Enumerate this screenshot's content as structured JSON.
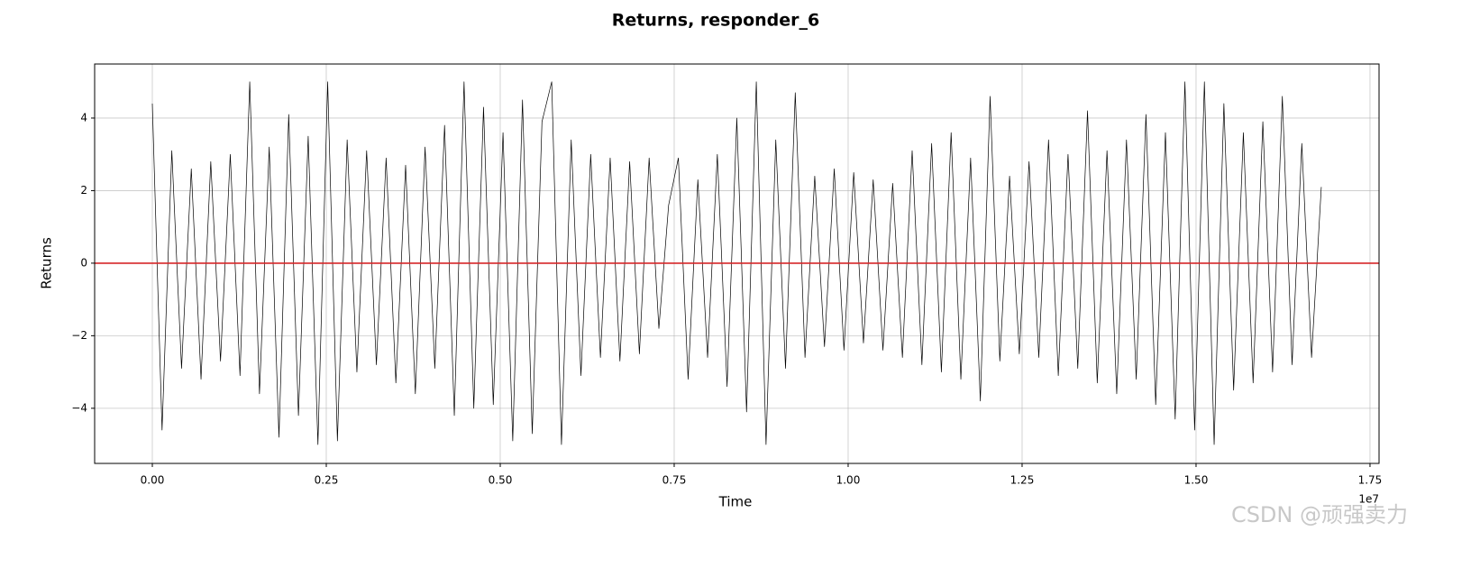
{
  "chart_data": {
    "type": "line",
    "title": "Returns, responder_6",
    "xlabel": "Time",
    "ylabel": "Returns",
    "x_offset_label": "1e7",
    "watermark": "CSDN @顽强卖力",
    "x": [
      0,
      140000,
      280000,
      420000,
      560000,
      700000,
      840000,
      980000,
      1120000,
      1260000,
      1400000,
      1540000,
      1680000,
      1820000,
      1960000,
      2100000,
      2240000,
      2380000,
      2520000,
      2660000,
      2800000,
      2940000,
      3080000,
      3220000,
      3360000,
      3500000,
      3640000,
      3780000,
      3920000,
      4060000,
      4200000,
      4340000,
      4480000,
      4620000,
      4760000,
      4900000,
      5040000,
      5180000,
      5320000,
      5460000,
      5600000,
      5740000,
      5880000,
      6020000,
      6160000,
      6300000,
      6440000,
      6580000,
      6720000,
      6860000,
      7000000,
      7140000,
      7280000,
      7420000,
      7560000,
      7700000,
      7840000,
      7980000,
      8120000,
      8260000,
      8400000,
      8540000,
      8680000,
      8820000,
      8960000,
      9100000,
      9240000,
      9380000,
      9520000,
      9660000,
      9800000,
      9940000,
      10080000,
      10220000,
      10360000,
      10500000,
      10640000,
      10780000,
      10920000,
      11060000,
      11200000,
      11340000,
      11480000,
      11620000,
      11760000,
      11900000,
      12040000,
      12180000,
      12320000,
      12460000,
      12600000,
      12740000,
      12880000,
      13020000,
      13160000,
      13300000,
      13440000,
      13580000,
      13720000,
      13860000,
      14000000,
      14140000,
      14280000,
      14420000,
      14560000,
      14700000,
      14840000,
      14980000,
      15120000,
      15260000,
      15400000,
      15540000,
      15680000,
      15820000,
      15960000,
      16100000,
      16240000,
      16380000,
      16520000,
      16660000,
      16800000
    ],
    "series": [
      {
        "color": "#000000",
        "values": [
          4.4,
          -4.6,
          3.1,
          -2.9,
          2.6,
          -3.2,
          2.8,
          -2.7,
          3.0,
          -3.1,
          5.0,
          -3.6,
          3.2,
          -4.8,
          4.1,
          -4.2,
          3.5,
          -5.0,
          5.0,
          -4.9,
          3.4,
          -3.0,
          3.1,
          -2.8,
          2.9,
          -3.3,
          2.7,
          -3.6,
          3.2,
          -2.9,
          3.8,
          -4.2,
          5.0,
          -4.0,
          4.3,
          -3.9,
          3.6,
          -4.9,
          4.5,
          -4.7,
          3.9,
          5.0,
          -5.0,
          3.4,
          -3.1,
          3.0,
          -2.6,
          2.9,
          -2.7,
          2.8,
          -2.5,
          2.9,
          -1.8,
          1.6,
          2.9,
          -3.2,
          2.3,
          -2.6,
          3.0,
          -3.4,
          4.0,
          -4.1,
          5.0,
          -5.0,
          3.4,
          -2.9,
          4.7,
          -2.6,
          2.4,
          -2.3,
          2.6,
          -2.4,
          2.5,
          -2.2,
          2.3,
          -2.4,
          2.2,
          -2.6,
          3.1,
          -2.8,
          3.3,
          -3.0,
          3.6,
          -3.2,
          2.9,
          -3.8,
          4.6,
          -2.7,
          2.4,
          -2.5,
          2.8,
          -2.6,
          3.4,
          -3.1,
          3.0,
          -2.9,
          4.2,
          -3.3,
          3.1,
          -3.6,
          3.4,
          -3.2,
          4.1,
          -3.9,
          3.6,
          -4.3,
          5.0,
          -4.6,
          5.0,
          -5.0,
          4.4,
          -3.5,
          3.6,
          -3.3,
          3.9,
          -3.0,
          4.6,
          -2.8,
          3.3,
          -2.6,
          2.1
        ]
      }
    ],
    "reference_line": {
      "value": 0,
      "color": "#d62728"
    },
    "xlim": [
      -829000,
      17630000
    ],
    "xticks": [
      {
        "value": 0,
        "label": "0.00"
      },
      {
        "value": 2500000,
        "label": "0.25"
      },
      {
        "value": 5000000,
        "label": "0.50"
      },
      {
        "value": 7500000,
        "label": "0.75"
      },
      {
        "value": 10000000,
        "label": "1.00"
      },
      {
        "value": 12500000,
        "label": "1.25"
      },
      {
        "value": 15000000,
        "label": "1.50"
      },
      {
        "value": 17500000,
        "label": "1.75"
      }
    ],
    "ylim": [
      -5.52,
      5.49
    ],
    "yticks": [
      {
        "value": -4,
        "label": "−4"
      },
      {
        "value": -2,
        "label": "−2"
      },
      0,
      2,
      4
    ],
    "grid": true
  }
}
